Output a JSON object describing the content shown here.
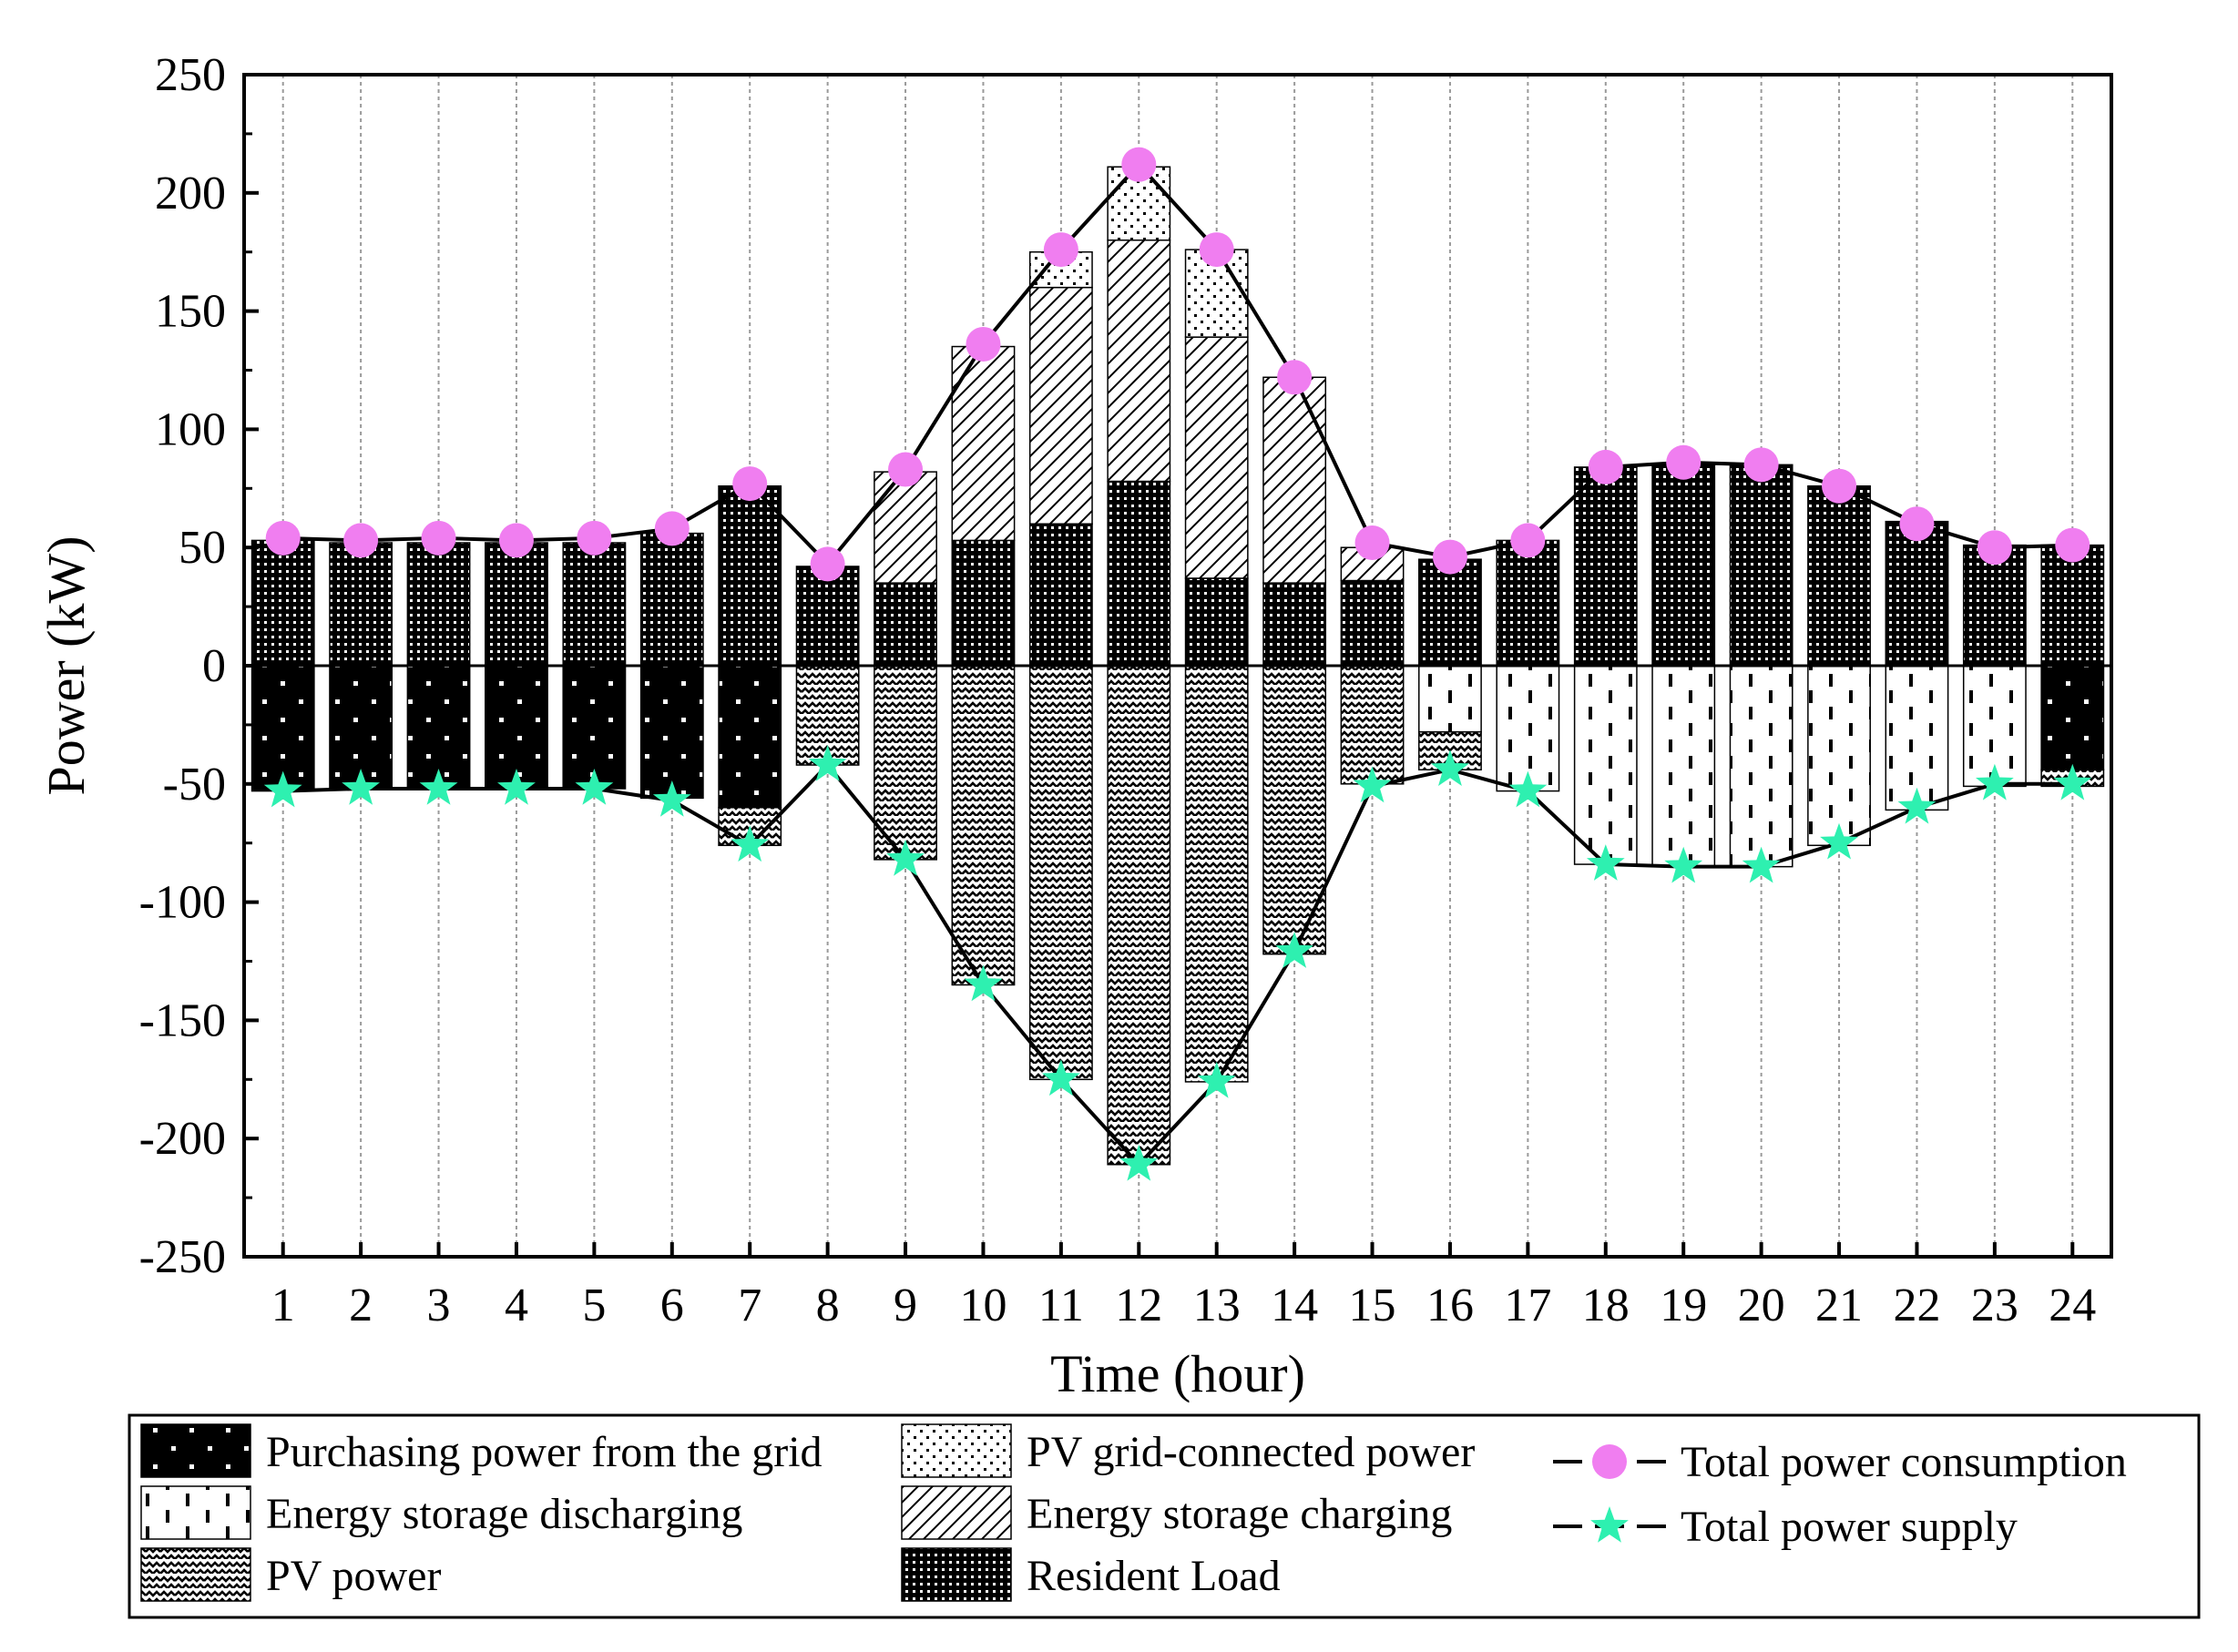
{
  "chart_data": {
    "type": "bar",
    "xlabel": "Time (hour)",
    "ylabel": "Power (kW)",
    "ylim": [
      -250,
      250
    ],
    "y_ticks": [
      250,
      200,
      150,
      100,
      50,
      0,
      -50,
      -100,
      -150,
      -200,
      -250
    ],
    "categories": [
      "1",
      "2",
      "3",
      "4",
      "5",
      "6",
      "7",
      "8",
      "9",
      "10",
      "11",
      "12",
      "13",
      "14",
      "15",
      "16",
      "17",
      "18",
      "19",
      "20",
      "21",
      "22",
      "23",
      "24"
    ],
    "colors": {
      "consumption_marker": "#f07ef0",
      "supply_marker": "#2ef0b0",
      "line": "#000000",
      "fill": "#000000"
    },
    "series": [
      {
        "key": "grid",
        "name": "Purchasing power from the grid",
        "stack": "supply",
        "values": [
          53,
          52,
          52,
          52,
          52,
          56,
          60,
          0,
          0,
          0,
          0,
          0,
          0,
          0,
          0,
          0,
          0,
          0,
          0,
          0,
          0,
          0,
          0,
          44
        ]
      },
      {
        "key": "discharge",
        "name": "Energy storage discharging",
        "stack": "supply",
        "values": [
          0,
          0,
          0,
          0,
          0,
          0,
          0,
          0,
          0,
          0,
          0,
          0,
          0,
          0,
          0,
          28,
          53,
          84,
          85,
          85,
          76,
          61,
          51,
          0
        ]
      },
      {
        "key": "pv",
        "name": "PV power",
        "stack": "supply",
        "values": [
          0,
          0,
          0,
          0,
          0,
          0,
          16,
          42,
          82,
          135,
          175,
          211,
          176,
          122,
          50,
          16,
          0,
          0,
          0,
          0,
          0,
          0,
          0,
          7
        ]
      },
      {
        "key": "load",
        "name": "Resident Load",
        "stack": "consumption",
        "values": [
          53,
          52,
          52,
          52,
          52,
          56,
          76,
          42,
          35,
          53,
          60,
          78,
          37,
          35,
          36,
          45,
          53,
          84,
          85,
          85,
          76,
          61,
          51,
          51
        ]
      },
      {
        "key": "charge",
        "name": "Energy storage charging",
        "stack": "consumption",
        "values": [
          0,
          0,
          0,
          0,
          0,
          0,
          0,
          0,
          47,
          82,
          100,
          102,
          102,
          87,
          14,
          0,
          0,
          0,
          0,
          0,
          0,
          0,
          0,
          0
        ]
      },
      {
        "key": "pvgrid",
        "name": "PV grid-connected power",
        "stack": "consumption",
        "values": [
          0,
          0,
          0,
          0,
          0,
          0,
          0,
          0,
          0,
          0,
          15,
          31,
          37,
          0,
          0,
          0,
          0,
          0,
          0,
          0,
          0,
          0,
          0,
          0
        ]
      },
      {
        "key": "consumption",
        "name": "Total power consumption",
        "kind": "line-circle",
        "values": [
          54,
          53,
          54,
          53,
          54,
          58,
          77,
          43,
          83,
          136,
          176,
          212,
          176,
          122,
          52,
          46,
          53,
          84,
          86,
          85,
          76,
          60,
          50,
          51
        ]
      },
      {
        "key": "supply",
        "name": "Total power supply",
        "kind": "line-star",
        "values": [
          -53,
          -52,
          -52,
          -52,
          -52,
          -57,
          -76,
          -42,
          -82,
          -135,
          -175,
          -211,
          -176,
          -121,
          -51,
          -44,
          -53,
          -84,
          -85,
          -85,
          -75,
          -60,
          -50,
          -50
        ]
      }
    ],
    "legend_position": "bottom"
  }
}
